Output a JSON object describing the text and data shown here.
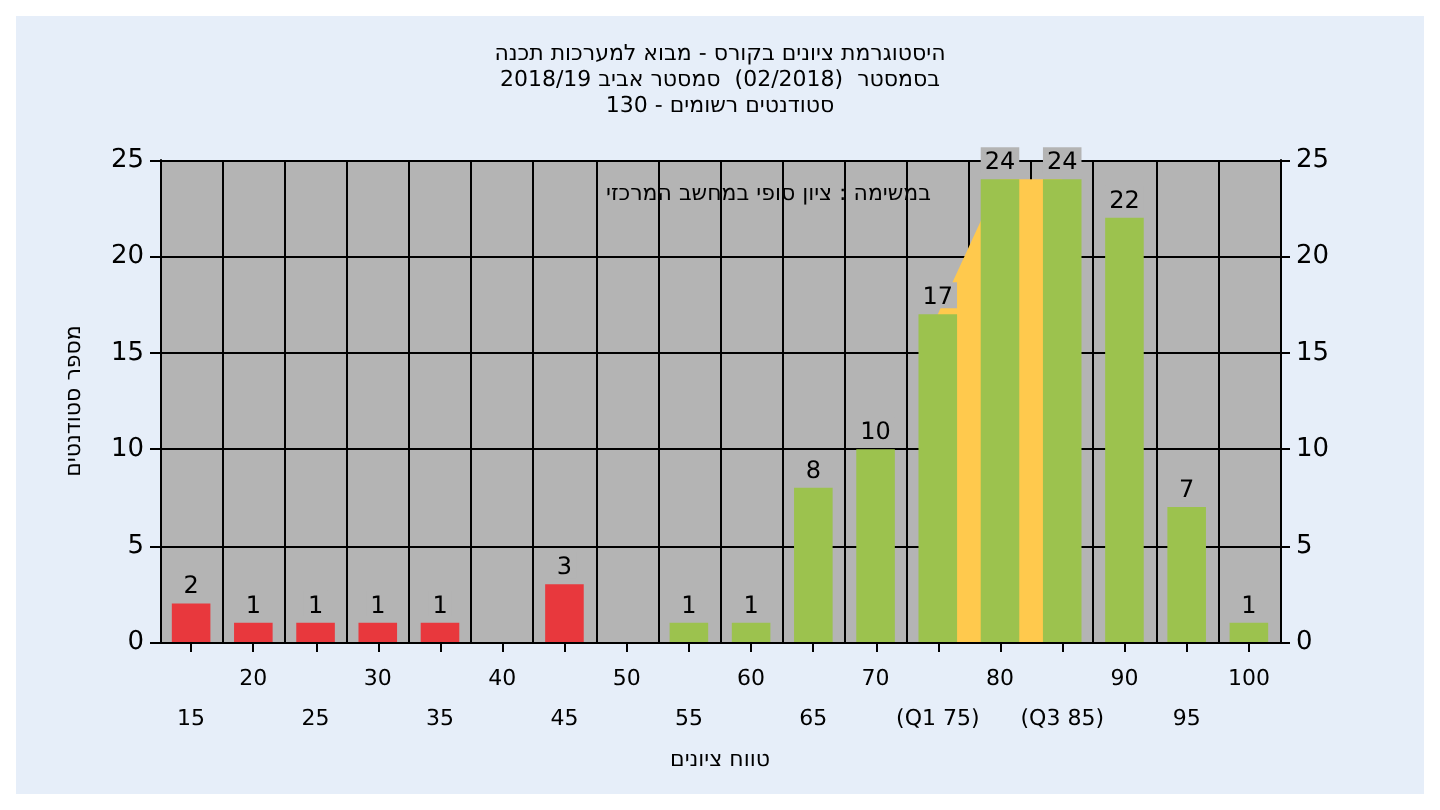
{
  "chart_data": {
    "type": "bar",
    "title": "היסטוגרמת ציונים בקורס - מבוא למערכות תכנה",
    "subtitle": "בסמסטר  (02/2018)  סמסטר אביב 2018/19\nסטודנטים רשומים - 130",
    "xlabel": "טווח ציונים",
    "ylabel": "מספר סטודנטים",
    "annotations": [
      "במשימה : ציון סופי במחשב המרכזי"
    ],
    "categories": [
      "15",
      "20",
      "25",
      "30",
      "35",
      "40",
      "45",
      "50",
      "55",
      "60",
      "65",
      "70",
      "(Q1 75)",
      "80",
      "(Q3 85)",
      "90",
      "95",
      "100"
    ],
    "series": [
      {
        "values": [
          2,
          1,
          1,
          1,
          1,
          0,
          3,
          0,
          1,
          1,
          8,
          10,
          17,
          24,
          24,
          22,
          7,
          1
        ],
        "colors": [
          "#e8383d",
          "#e8383d",
          "#e8383d",
          "#e8383d",
          "#e8383d",
          "#e8383d",
          "#e8383d",
          "#9cc24e",
          "#9cc24e",
          "#9cc24e",
          "#9cc24e",
          "#9cc24e",
          "#9cc24e",
          "#9cc24e",
          "#9cc24e",
          "#9cc24e",
          "#9cc24e",
          "#9cc24e"
        ],
        "value_labels": [
          "2",
          "1",
          "1",
          "1",
          "1",
          null,
          "3",
          null,
          "1",
          "1",
          "8",
          "10",
          "17",
          "24",
          "24",
          "22",
          "7",
          "1"
        ]
      },
      {
        "type": "area",
        "color": "#ffc94d",
        "values": [
          null,
          null,
          null,
          null,
          null,
          null,
          null,
          null,
          null,
          null,
          null,
          null,
          17,
          24,
          24,
          null,
          null,
          null
        ]
      }
    ],
    "ylim": [
      0,
      25
    ],
    "yticks": [
      0,
      5,
      10,
      15,
      20,
      25
    ],
    "y2lim": [
      0,
      25
    ],
    "y2ticks": [
      0,
      5,
      10,
      15,
      20,
      25
    ],
    "grid": true
  }
}
